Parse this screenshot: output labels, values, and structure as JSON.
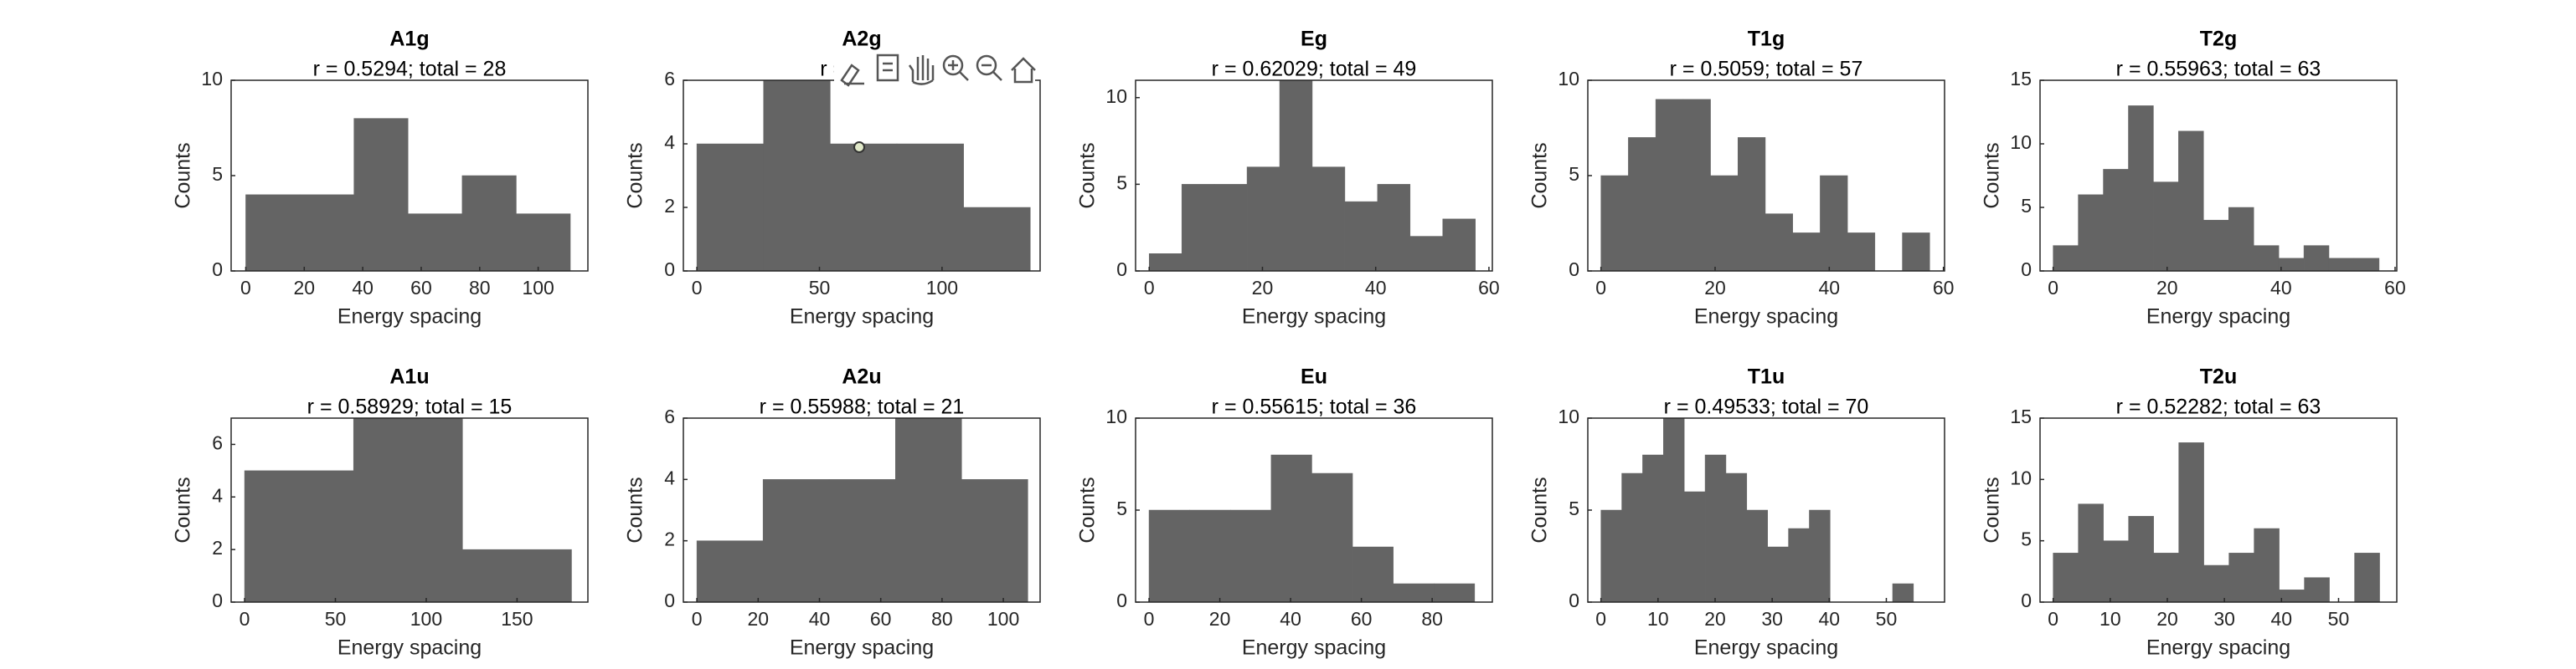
{
  "chart_data": [
    {
      "type": "histogram",
      "title": "A1g",
      "subtitle": "r = 0.5294; total = 28",
      "xlabel": "Energy spacing",
      "ylabel": "Counts",
      "color": "#646464",
      "bins": [
        0,
        18.5,
        37,
        55.5,
        74,
        92.5,
        111
      ],
      "counts": [
        4,
        4,
        8,
        3,
        5,
        3
      ],
      "xlim": [
        -5,
        117
      ],
      "ylim": [
        0,
        10
      ],
      "xticks": [
        0,
        20,
        40,
        60,
        80,
        100
      ],
      "yticks": [
        0,
        5,
        10
      ]
    },
    {
      "type": "histogram",
      "title": "A2g",
      "subtitle": "r = 0.546",
      "xlabel": "Energy spacing",
      "ylabel": "Counts",
      "color": "#646464",
      "bins": [
        0,
        27.2,
        54.4,
        81.6,
        108.8,
        136
      ],
      "counts": [
        4,
        6,
        4,
        4,
        2
      ],
      "xlim": [
        -5.5,
        140
      ],
      "ylim": [
        0,
        6
      ],
      "xticks": [
        0,
        50,
        100
      ],
      "yticks": [
        0,
        2,
        4,
        6
      ]
    },
    {
      "type": "histogram",
      "title": "Eg",
      "subtitle": "r = 0.62029; total = 49",
      "xlabel": "Energy spacing",
      "ylabel": "Counts",
      "color": "#646464",
      "bins": [
        0,
        5.76,
        11.52,
        17.28,
        23.04,
        28.8,
        34.56,
        40.32,
        46.08,
        51.84,
        57.6
      ],
      "counts": [
        1,
        5,
        5,
        6,
        11,
        6,
        4,
        5,
        2,
        3
      ],
      "xlim": [
        -2.4,
        60.6
      ],
      "ylim": [
        0,
        11
      ],
      "xticks": [
        0,
        20,
        40,
        60
      ],
      "yticks": [
        0,
        5,
        10
      ]
    },
    {
      "type": "histogram",
      "title": "T1g",
      "subtitle": "r = 0.5059; total = 57",
      "xlabel": "Energy spacing",
      "ylabel": "Counts",
      "color": "#646464",
      "bins": [
        0,
        4.8,
        9.6,
        14.4,
        19.2,
        24,
        28.8,
        33.6,
        38.4,
        43.2,
        48,
        52.8,
        57.6
      ],
      "counts": [
        5,
        7,
        9,
        9,
        5,
        7,
        3,
        2,
        5,
        2,
        0,
        2
      ],
      "xlim": [
        -2.3,
        60.2
      ],
      "ylim": [
        0,
        10
      ],
      "xticks": [
        0,
        20,
        40,
        60
      ],
      "yticks": [
        0,
        5,
        10
      ]
    },
    {
      "type": "histogram",
      "title": "T2g",
      "subtitle": "r = 0.55963; total = 63",
      "xlabel": "Energy spacing",
      "ylabel": "Counts",
      "color": "#646464",
      "bins": [
        0,
        4.4,
        8.8,
        13.2,
        17.6,
        22,
        26.4,
        30.8,
        35.2,
        39.6,
        44,
        48.4,
        52.8,
        57.2
      ],
      "counts": [
        2,
        6,
        8,
        13,
        7,
        11,
        4,
        5,
        2,
        1,
        2,
        1,
        1
      ],
      "xlim": [
        -2.3,
        60.3
      ],
      "ylim": [
        0,
        15
      ],
      "xticks": [
        0,
        20,
        40,
        60
      ],
      "yticks": [
        0,
        5,
        10,
        15
      ]
    },
    {
      "type": "histogram",
      "title": "A1u",
      "subtitle": "r = 0.58929; total = 15",
      "xlabel": "Energy spacing",
      "ylabel": "Counts",
      "color": "#646464",
      "bins": [
        0,
        60,
        120,
        180
      ],
      "counts": [
        5,
        7,
        2
      ],
      "xlim": [
        -7.4,
        189
      ],
      "ylim": [
        0,
        7
      ],
      "xticks": [
        0,
        50,
        100,
        150
      ],
      "yticks": [
        0,
        2,
        4,
        6
      ]
    },
    {
      "type": "histogram",
      "title": "A2u",
      "subtitle": "r = 0.55988; total = 21",
      "xlabel": "Energy spacing",
      "ylabel": "Counts",
      "color": "#646464",
      "bins": [
        0,
        21.6,
        43.2,
        64.8,
        86.4,
        108
      ],
      "counts": [
        2,
        4,
        4,
        6,
        4
      ],
      "xlim": [
        -4.4,
        112
      ],
      "ylim": [
        0,
        6
      ],
      "xticks": [
        0,
        20,
        40,
        60,
        80,
        100
      ],
      "yticks": [
        0,
        2,
        4,
        6
      ]
    },
    {
      "type": "histogram",
      "title": "Eu",
      "subtitle": "r = 0.55615; total = 36",
      "xlabel": "Energy spacing",
      "ylabel": "Counts",
      "color": "#646464",
      "bins": [
        0,
        11.5,
        23,
        34.5,
        46,
        57.5,
        69,
        80.5,
        92
      ],
      "counts": [
        5,
        5,
        5,
        8,
        7,
        3,
        1,
        1
      ],
      "xlim": [
        -3.8,
        97
      ],
      "ylim": [
        0,
        10
      ],
      "xticks": [
        0,
        20,
        40,
        60,
        80
      ],
      "yticks": [
        0,
        5,
        10
      ]
    },
    {
      "type": "histogram",
      "title": "T1u",
      "subtitle": "r = 0.49533; total = 70",
      "xlabel": "Energy spacing",
      "ylabel": "Counts",
      "color": "#646464",
      "bins": [
        0,
        3.65,
        7.3,
        10.95,
        14.6,
        18.25,
        21.9,
        25.55,
        29.2,
        32.85,
        36.5,
        40.15,
        43.8,
        47.45,
        51.1,
        54.75
      ],
      "counts": [
        5,
        7,
        8,
        10,
        6,
        8,
        7,
        5,
        3,
        4,
        5,
        0,
        0,
        0,
        1
      ],
      "xlim": [
        -2.3,
        60.2
      ],
      "ylim": [
        0,
        10
      ],
      "xticks": [
        0,
        10,
        20,
        30,
        40,
        50
      ],
      "yticks": [
        0,
        5,
        10
      ]
    },
    {
      "type": "histogram",
      "title": "T2u",
      "subtitle": "r = 0.52282; total = 63",
      "xlabel": "Energy spacing",
      "ylabel": "Counts",
      "color": "#646464",
      "bins": [
        0,
        4.4,
        8.8,
        13.2,
        17.6,
        22,
        26.4,
        30.8,
        35.2,
        39.6,
        44,
        48.4,
        52.8,
        57.2
      ],
      "counts": [
        4,
        8,
        5,
        7,
        4,
        13,
        3,
        4,
        6,
        1,
        2,
        0,
        4
      ],
      "xlim": [
        -2.3,
        60.2
      ],
      "ylim": [
        0,
        15
      ],
      "xticks": [
        0,
        10,
        20,
        30,
        40,
        50
      ],
      "yticks": [
        0,
        5,
        10,
        15
      ]
    }
  ]
}
